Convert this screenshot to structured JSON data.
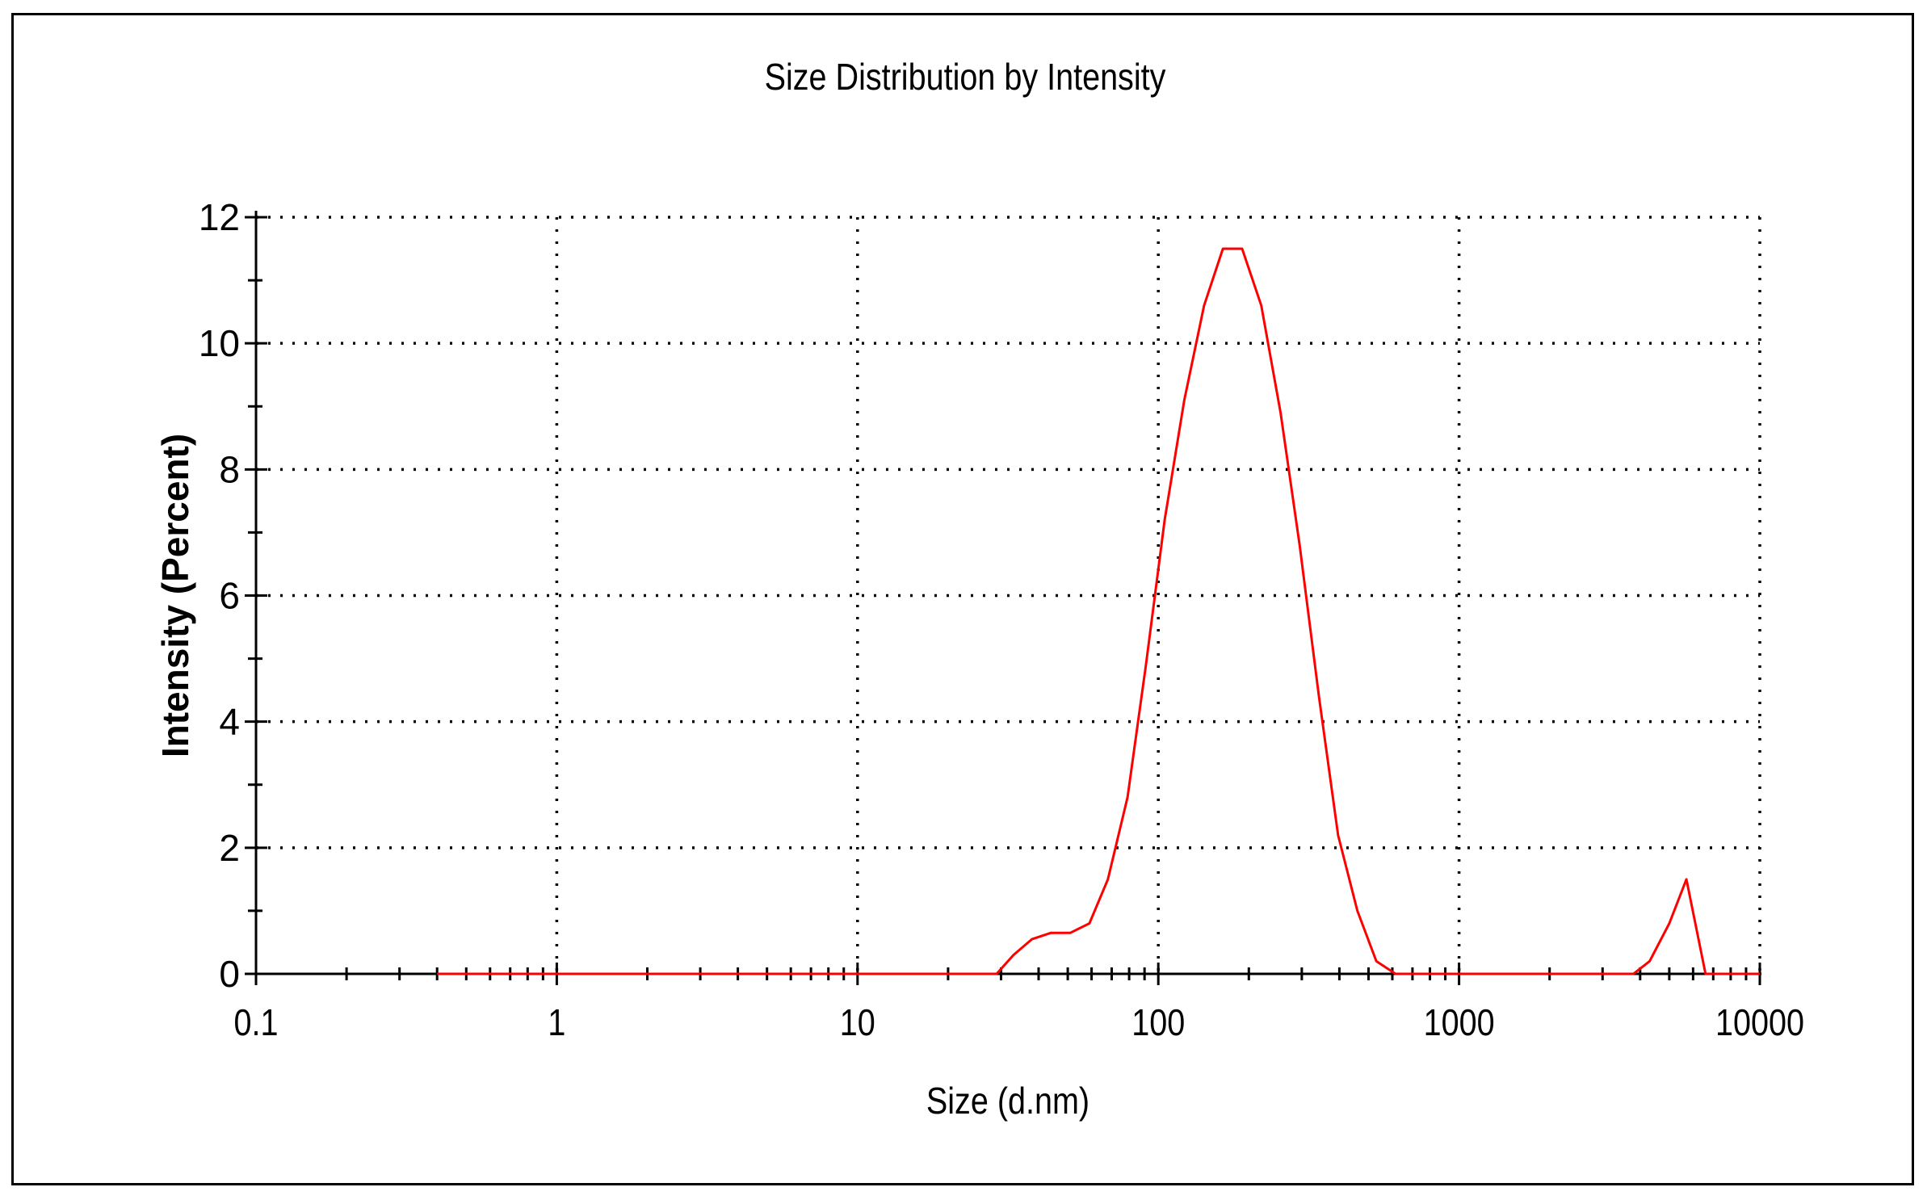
{
  "chart_data": {
    "type": "line",
    "title": "Size Distribution by Intensity",
    "xlabel": "Size (d.nm)",
    "ylabel": "Intensity (Percent)",
    "x_scale": "log",
    "xlim": [
      0.1,
      10000
    ],
    "ylim": [
      0,
      12
    ],
    "x_ticks": [
      0.1,
      1,
      10,
      100,
      1000,
      10000
    ],
    "x_tick_labels": [
      "0.1",
      "1",
      "10",
      "100",
      "1000",
      "10000"
    ],
    "y_ticks": [
      0,
      2,
      4,
      6,
      8,
      10,
      12
    ],
    "y_tick_labels": [
      "0",
      "2",
      "4",
      "6",
      "8",
      "10",
      "12"
    ],
    "grid": true,
    "series": [
      {
        "color": "#ff0000",
        "x": [
          0.4,
          1,
          10,
          29,
          33,
          38,
          44,
          51,
          59,
          68,
          79,
          91,
          105,
          122,
          142,
          164,
          190,
          220,
          255,
          295,
          342,
          396,
          459,
          531,
          615,
          712,
          1000,
          3800,
          4300,
          5000,
          5700,
          6600,
          8000,
          10000
        ],
        "y": [
          0,
          0,
          0,
          0,
          0.3,
          0.55,
          0.65,
          0.65,
          0.8,
          1.5,
          2.8,
          4.9,
          7.2,
          9.1,
          10.6,
          11.5,
          11.5,
          10.6,
          8.9,
          6.8,
          4.4,
          2.2,
          1.0,
          0.2,
          0,
          0,
          0,
          0,
          0.2,
          0.8,
          1.5,
          0,
          0,
          0
        ]
      }
    ]
  }
}
